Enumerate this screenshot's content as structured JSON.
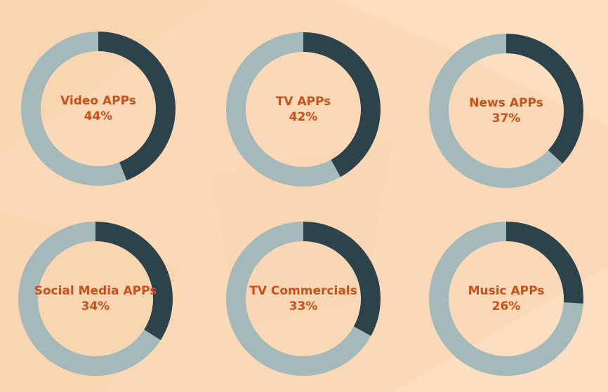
{
  "colors": {
    "background": "#fbd9b6",
    "filled": "#2d434c",
    "remaining": "#a3b9ba",
    "label": "#c8511b"
  },
  "chart_data": [
    {
      "type": "pie",
      "title": "Video APPs",
      "value_label": "44%",
      "values": [
        44,
        56
      ]
    },
    {
      "type": "pie",
      "title": "TV APPs",
      "value_label": "42%",
      "values": [
        42,
        58
      ]
    },
    {
      "type": "pie",
      "title": "News APPs",
      "value_label": "37%",
      "values": [
        37,
        63
      ]
    },
    {
      "type": "pie",
      "title": "Social Media APPs",
      "value_label": "34%",
      "values": [
        34,
        66
      ]
    },
    {
      "type": "pie",
      "title": "TV Commercials",
      "value_label": "33%",
      "values": [
        33,
        67
      ]
    },
    {
      "type": "pie",
      "title": "Music APPs",
      "value_label": "26%",
      "values": [
        26,
        74
      ]
    }
  ]
}
